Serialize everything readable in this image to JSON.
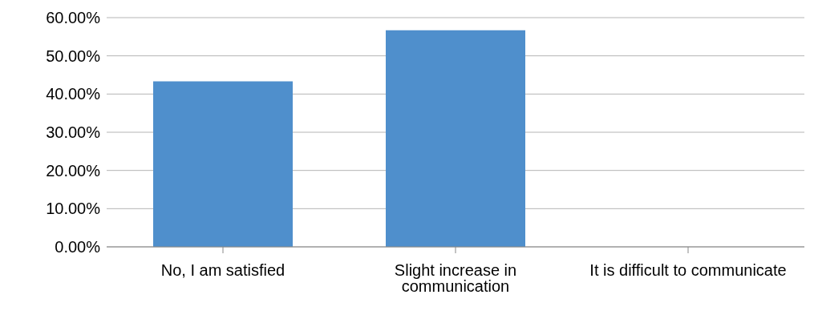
{
  "chart_data": {
    "type": "bar",
    "categories": [
      "No, I am satisfied",
      "Slight increase in communication",
      "It is difficult to communicate"
    ],
    "values": [
      43.3,
      56.7,
      0
    ],
    "color": "#4f8fcc",
    "ylim": [
      0,
      60
    ],
    "yticks": [
      {
        "value": 0,
        "label": "0.00%"
      },
      {
        "value": 10,
        "label": "10.00%"
      },
      {
        "value": 20,
        "label": "20.00%"
      },
      {
        "value": 30,
        "label": "30.00%"
      },
      {
        "value": 40,
        "label": "40.00%"
      },
      {
        "value": 50,
        "label": "50.00%"
      },
      {
        "value": 60,
        "label": "60.00%"
      }
    ],
    "grid": "y"
  }
}
